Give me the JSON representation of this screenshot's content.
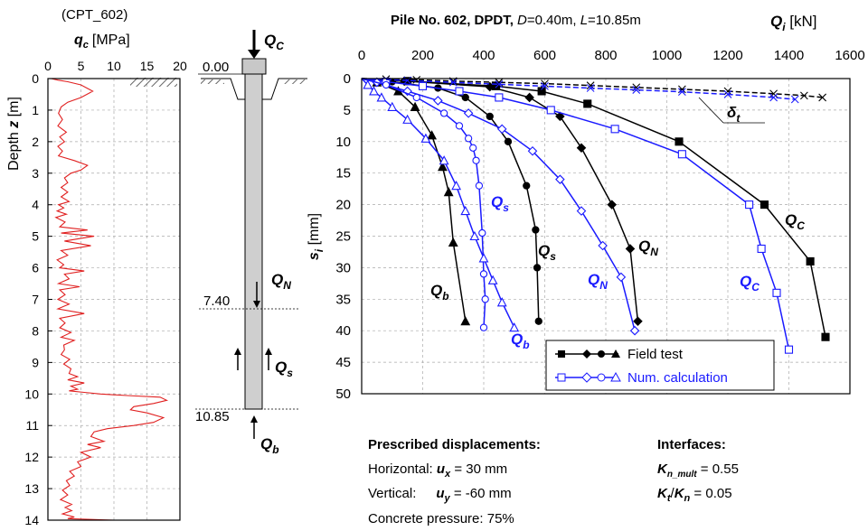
{
  "chart_data": [
    {
      "type": "line",
      "title": "(CPT_602)",
      "xlabel_symbol": "q",
      "xlabel_sub": "c",
      "xlabel_unit": "[MPa]",
      "ylabel_prefix": "Depth ",
      "ylabel_symbol": "z",
      "ylabel_unit": " [m]",
      "xlim": [
        0,
        20
      ],
      "ylim": [
        0,
        14
      ],
      "xticks": [
        0,
        5,
        10,
        15,
        20
      ],
      "yticks": [
        0,
        1,
        2,
        3,
        4,
        5,
        6,
        7,
        8,
        9,
        10,
        11,
        12,
        13,
        14
      ],
      "grid": true,
      "series": [
        {
          "color": "#e02020",
          "x": [
            0.5,
            1.5,
            3,
            5,
            6.8,
            5,
            3,
            2,
            1.6,
            2.2,
            1.5,
            2.8,
            1.8,
            2.5,
            1.5,
            2.2,
            1.6,
            4,
            6,
            5,
            3.5,
            2.5,
            3,
            2,
            3,
            2,
            3.2,
            1.6,
            2.4,
            1.4,
            2.8,
            1.2,
            2.6,
            1.8,
            6,
            2,
            7,
            2.5,
            6.5,
            2,
            3,
            1.4,
            2.4,
            1.8,
            5.5,
            2.5,
            3.2,
            1.6,
            4.8,
            1.8,
            2.6,
            1.5,
            3.2,
            1.5,
            5.5,
            1.8,
            2.6,
            1.8,
            3.5,
            2,
            4,
            2.4,
            2.5,
            2,
            3.3,
            2.4,
            3.5,
            3.2,
            4.5,
            3,
            5.5,
            3.5,
            4.5,
            3.2,
            5.5,
            8,
            12,
            17,
            18,
            16,
            13,
            12.5,
            15,
            17.5,
            16,
            13,
            9,
            7,
            6.5,
            8.5,
            6,
            8,
            5,
            6.5,
            4.5,
            5,
            3.3,
            4,
            2.8,
            3.3,
            2.2,
            3,
            1.9,
            3.6,
            2.6,
            3.6,
            2.2,
            4,
            3,
            10
          ],
          "y": [
            0,
            0.05,
            0.1,
            0.2,
            0.4,
            0.6,
            0.75,
            0.9,
            1.1,
            1.3,
            1.5,
            1.7,
            1.85,
            2.0,
            2.15,
            2.3,
            2.45,
            2.6,
            2.75,
            2.9,
            3.0,
            3.15,
            3.3,
            3.45,
            3.6,
            3.75,
            3.9,
            4.0,
            4.1,
            4.2,
            4.3,
            4.4,
            4.55,
            4.7,
            4.8,
            4.9,
            5.0,
            5.15,
            5.3,
            5.45,
            5.6,
            5.75,
            5.9,
            6.0,
            6.1,
            6.2,
            6.35,
            6.5,
            6.6,
            6.7,
            6.85,
            7.0,
            7.15,
            7.3,
            7.45,
            7.6,
            7.75,
            7.9,
            8.05,
            8.2,
            8.3,
            8.45,
            8.6,
            8.75,
            8.9,
            9.05,
            9.2,
            9.35,
            9.45,
            9.55,
            9.65,
            9.75,
            9.85,
            9.9,
            9.95,
            10.0,
            10.05,
            10.1,
            10.2,
            10.3,
            10.4,
            10.5,
            10.6,
            10.75,
            10.9,
            11.0,
            11.1,
            11.2,
            11.35,
            11.5,
            11.6,
            11.7,
            11.85,
            12.0,
            12.15,
            12.3,
            12.45,
            12.6,
            12.75,
            12.9,
            13.05,
            13.2,
            13.35,
            13.5,
            13.6,
            13.7,
            13.8,
            13.9,
            13.95,
            14.0
          ]
        }
      ]
    },
    {
      "type": "line",
      "title_parts": [
        "Pile No. 602, DPDT, ",
        "D",
        "=0.40m,  ",
        "L",
        "=10.85m"
      ],
      "x_axis_symbol": "Q",
      "x_axis_sub": "i",
      "x_axis_unit": " [kN]",
      "y_axis_symbol": "s",
      "y_axis_sub": "i",
      "y_axis_unit": " [mm]",
      "xlim": [
        0,
        1600
      ],
      "ylim": [
        0,
        50
      ],
      "xticks": [
        0,
        200,
        400,
        600,
        800,
        1000,
        1200,
        1400,
        1600
      ],
      "yticks": [
        0,
        5,
        10,
        15,
        20,
        25,
        30,
        35,
        40,
        45,
        50
      ],
      "grid": true,
      "legend": {
        "position": "lower-center",
        "entries": [
          {
            "label": "Field test",
            "color": "#000000"
          },
          {
            "label": "Num. calculation",
            "color": "#1a1aff"
          }
        ]
      },
      "series": [
        {
          "group": "Field test",
          "component": "Q_c",
          "color": "#000000",
          "marker": "square",
          "x": [
            0,
            150,
            440,
            590,
            740,
            1040,
            1320,
            1470,
            1520
          ],
          "y": [
            0,
            0.4,
            1.2,
            2.0,
            4.0,
            10.0,
            20.0,
            29.0,
            41.0
          ]
        },
        {
          "group": "Field test",
          "component": "Q_N",
          "color": "#000000",
          "marker": "diamond",
          "x": [
            0,
            140,
            420,
            550,
            650,
            720,
            820,
            880,
            905
          ],
          "y": [
            0,
            0.4,
            1.3,
            3.0,
            6.0,
            11.0,
            20.0,
            27.0,
            38.5
          ]
        },
        {
          "group": "Field test",
          "component": "Q_s",
          "color": "#000000",
          "marker": "circle",
          "x": [
            0,
            100,
            250,
            340,
            420,
            480,
            540,
            570,
            575,
            580
          ],
          "y": [
            0,
            0.5,
            1.5,
            3.0,
            6.0,
            10.0,
            17.0,
            24.0,
            30.0,
            38.5
          ]
        },
        {
          "group": "Field test",
          "component": "Q_b",
          "color": "#000000",
          "marker": "triangle",
          "x": [
            0,
            50,
            120,
            175,
            230,
            265,
            285,
            300,
            340
          ],
          "y": [
            0,
            0.6,
            2.0,
            4.5,
            9.0,
            14.0,
            18.0,
            26.0,
            38.5
          ]
        },
        {
          "group": "Field test",
          "component": "δ_t",
          "color": "#000000",
          "marker": "cross",
          "dashed": true,
          "x": [
            0,
            80,
            180,
            300,
            450,
            600,
            750,
            900,
            1050,
            1200,
            1350,
            1450,
            1510
          ],
          "y": [
            0,
            0.1,
            0.2,
            0.4,
            0.6,
            0.8,
            1.1,
            1.4,
            1.7,
            2.0,
            2.4,
            2.7,
            3.0
          ]
        },
        {
          "group": "Num. calculation",
          "component": "Q_c",
          "color": "#1a1aff",
          "marker": "square",
          "x": [
            0,
            80,
            200,
            320,
            450,
            620,
            830,
            1050,
            1270,
            1310,
            1360,
            1400
          ],
          "y": [
            0,
            0.5,
            1.2,
            2.0,
            3.0,
            5.0,
            8.0,
            12.0,
            20.0,
            27.0,
            34.0,
            43.0
          ]
        },
        {
          "group": "Num. calculation",
          "component": "Q_N",
          "color": "#1a1aff",
          "marker": "diamond",
          "x": [
            0,
            50,
            150,
            250,
            350,
            460,
            560,
            650,
            720,
            790,
            850,
            895
          ],
          "y": [
            0,
            0.6,
            2.0,
            3.5,
            5.5,
            8.0,
            11.5,
            16.0,
            21.0,
            26.5,
            31.5,
            40.0
          ]
        },
        {
          "group": "Num. calculation",
          "component": "Q_s",
          "color": "#1a1aff",
          "marker": "circle",
          "x": [
            0,
            80,
            180,
            270,
            320,
            350,
            365,
            375,
            385,
            395,
            400,
            405,
            400
          ],
          "y": [
            0,
            1.0,
            3.0,
            5.5,
            7.5,
            9.5,
            11.0,
            13.0,
            17.0,
            24.5,
            31.0,
            35.0,
            39.5
          ]
        },
        {
          "group": "Num. calculation",
          "component": "Q_b",
          "color": "#1a1aff",
          "marker": "triangle",
          "x": [
            0,
            20,
            40,
            65,
            100,
            150,
            210,
            270,
            310,
            340,
            370,
            400,
            430,
            460,
            500
          ],
          "y": [
            0,
            1.0,
            2.0,
            3.0,
            4.5,
            6.5,
            9.5,
            13.0,
            17.0,
            21.0,
            25.0,
            28.5,
            32.0,
            35.5,
            39.5
          ]
        },
        {
          "group": "Num. calculation",
          "component": "δ_t",
          "color": "#1a1aff",
          "marker": "cross",
          "dashed": true,
          "x": [
            0,
            150,
            300,
            450,
            600,
            750,
            900,
            1050,
            1200,
            1350,
            1420
          ],
          "y": [
            0,
            0.3,
            0.6,
            0.9,
            1.2,
            1.5,
            1.8,
            2.1,
            2.5,
            3.0,
            3.3
          ]
        }
      ],
      "labels": [
        {
          "text": "Q",
          "sub": "C",
          "color": "#000000"
        },
        {
          "text": "Q",
          "sub": "N",
          "color": "#000000"
        },
        {
          "text": "Q",
          "sub": "s",
          "color": "#000000"
        },
        {
          "text": "Q",
          "sub": "b",
          "color": "#000000"
        },
        {
          "text": "Q",
          "sub": "C",
          "color": "#1a1aff"
        },
        {
          "text": "Q",
          "sub": "N",
          "color": "#1a1aff"
        },
        {
          "text": "Q",
          "sub": "s",
          "color": "#1a1aff"
        },
        {
          "text": "Q",
          "sub": "b",
          "color": "#1a1aff"
        },
        {
          "text": "δ",
          "sub": "t",
          "color": "#000000"
        }
      ]
    }
  ],
  "pile": {
    "top_level": "0.00",
    "neutral_level": "7.40",
    "toe_level": "10.85",
    "load_labels": [
      {
        "text": "Q",
        "sub": "C"
      },
      {
        "text": "Q",
        "sub": "N"
      },
      {
        "text": "Q",
        "sub": "s"
      },
      {
        "text": "Q",
        "sub": "b"
      }
    ]
  },
  "notes": {
    "prescribed": {
      "heading": "Prescribed displacements:",
      "horizontal_label": "Horizontal: ",
      "horizontal_symbol": "u",
      "horizontal_sub": "x",
      "horizontal_value": " = 30 mm",
      "vertical_label": "Vertical:",
      "vertical_symbol": "u",
      "vertical_sub": "y",
      "vertical_value": " = -60 mm",
      "concrete": "Concrete pressure: 75%"
    },
    "interfaces": {
      "heading": "Interfaces:",
      "kmult_symbol": "K",
      "kmult_sub": "n_mult",
      "kmult_value": " = 0.55",
      "ratio_symbol1": "K",
      "ratio_sub1": "t",
      "ratio_sep": "/",
      "ratio_symbol2": "K",
      "ratio_sub2": "n",
      "ratio_value": " = 0.05"
    }
  }
}
